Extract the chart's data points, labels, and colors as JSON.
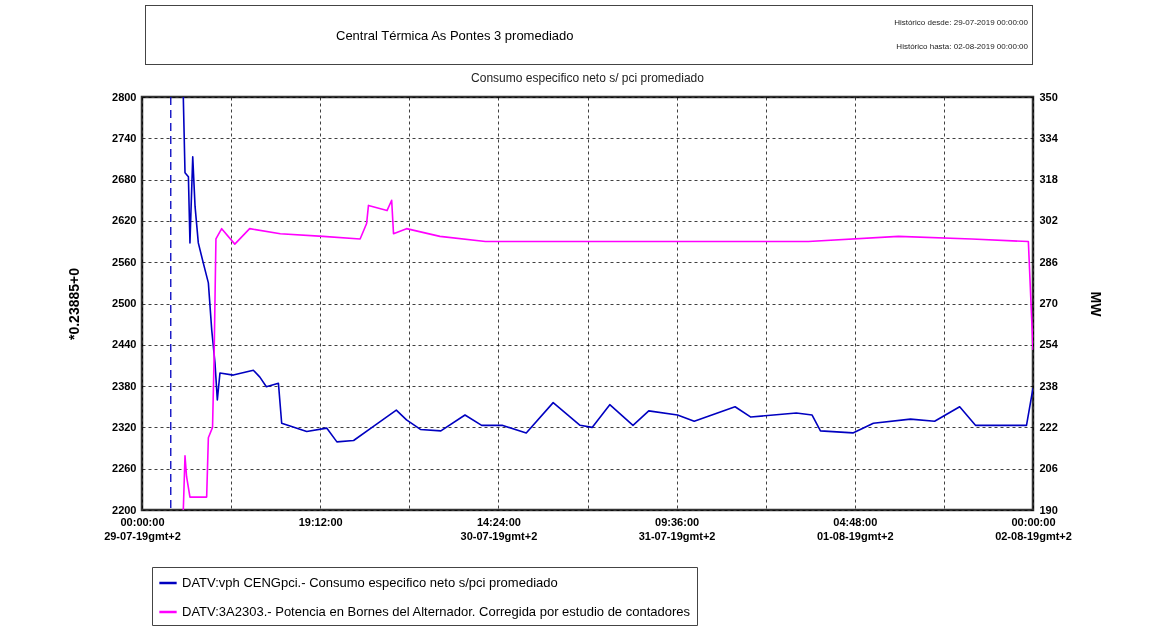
{
  "chart_data": {
    "type": "line",
    "title": "Central Térmica As Pontes 3 promediado",
    "subtitle": "Consumo especifico neto s/ pci promediado",
    "annotations": [
      "Histórico desde: 29-07-2019 00:00:00",
      "Histórico hasta: 02-08-2019 00:00:00"
    ],
    "ylabel": "*0.23885+0",
    "y2label": "MW",
    "xlim": [
      "2019-07-29T00:00",
      "2019-08-02T00:00"
    ],
    "xticks": [
      {
        "value": "2019-07-29T00:00",
        "label": "00:00:00\n29-07-19gmt+2"
      },
      {
        "value": "2019-07-29T09:36",
        "label": null
      },
      {
        "value": "2019-07-29T19:12",
        "label": "19:12:00"
      },
      {
        "value": "2019-07-30T04:48",
        "label": null
      },
      {
        "value": "2019-07-30T14:24",
        "label": "14:24:00\n30-07-19gmt+2"
      },
      {
        "value": "2019-07-31T00:00",
        "label": null
      },
      {
        "value": "2019-07-31T09:36",
        "label": "09:36:00\n31-07-19gmt+2"
      },
      {
        "value": "2019-07-31T19:12",
        "label": null
      },
      {
        "value": "2019-08-01T04:48",
        "label": "04:48:00\n01-08-19gmt+2"
      },
      {
        "value": "2019-08-01T14:24",
        "label": null
      },
      {
        "value": "2019-08-02T00:00",
        "label": "00:00:00\n02-08-19gmt+2"
      }
    ],
    "ylim": [
      2200,
      2800
    ],
    "yticks": [
      2200,
      2260,
      2320,
      2380,
      2440,
      2500,
      2560,
      2620,
      2680,
      2740,
      2800
    ],
    "y2lim": [
      190,
      350
    ],
    "y2ticks": [
      190,
      206,
      222,
      238,
      254,
      270,
      286,
      302,
      318,
      334,
      350
    ],
    "grid": true,
    "legend": "bottom",
    "ref_lines": [
      {
        "axis": "x",
        "value": "2019-07-29T03:06",
        "color": "#0000c0",
        "line_style": "dashed"
      }
    ],
    "series": [
      {
        "name": "DATV:vph  CENGpci.- Consumo especifico neto s/pci promediado",
        "color": "#0000c0",
        "x": [
          "2019-07-29T04:27",
          "2019-07-29T04:38",
          "2019-07-29T05:00",
          "2019-07-29T05:10",
          "2019-07-29T05:28",
          "2019-07-29T05:43",
          "2019-07-29T06:04",
          "2019-07-29T06:36",
          "2019-07-29T07:09",
          "2019-07-29T07:31",
          "2019-07-29T07:52",
          "2019-07-29T08:07",
          "2019-07-29T08:24",
          "2019-07-29T09:50",
          "2019-07-29T12:00",
          "2019-07-29T12:42",
          "2019-07-29T13:24",
          "2019-07-29T14:42",
          "2019-07-29T15:03",
          "2019-07-29T17:45",
          "2019-07-29T19:54",
          "2019-07-29T21:00",
          "2019-07-29T22:48",
          "2019-07-30T00:54",
          "2019-07-30T03:24",
          "2019-07-30T04:30",
          "2019-07-30T06:00",
          "2019-07-30T08:12",
          "2019-07-30T10:48",
          "2019-07-30T12:36",
          "2019-07-30T14:48",
          "2019-07-30T17:24",
          "2019-07-30T20:18",
          "2019-07-30T23:12",
          "2019-07-31T00:30",
          "2019-07-31T02:24",
          "2019-07-31T04:54",
          "2019-07-31T06:36",
          "2019-07-31T09:42",
          "2019-07-31T11:30",
          "2019-07-31T15:54",
          "2019-07-31T17:36",
          "2019-07-31T22:30",
          "2019-08-01T00:12",
          "2019-08-01T01:06",
          "2019-08-01T04:36",
          "2019-08-01T06:48",
          "2019-08-01T10:48",
          "2019-08-01T13:24",
          "2019-08-01T16:06",
          "2019-08-01T17:48",
          "2019-08-01T20:54",
          "2019-08-01T23:18",
          "2019-08-02T00:00"
        ],
        "values": [
          2800,
          2690,
          2684,
          2588,
          2713,
          2641,
          2588,
          2559,
          2530,
          2461,
          2413,
          2360,
          2399,
          2396,
          2403,
          2393,
          2379,
          2384,
          2326,
          2314,
          2319,
          2299,
          2301,
          2321,
          2345,
          2331,
          2317,
          2315,
          2338,
          2323,
          2323,
          2312,
          2356,
          2323,
          2320,
          2353,
          2323,
          2344,
          2338,
          2329,
          2350,
          2335,
          2341,
          2338,
          2315,
          2312,
          2326,
          2332,
          2329,
          2350,
          2323,
          2323,
          2323,
          2377
        ]
      },
      {
        "name": "DATV:3A2303.- Potencia en Bornes del Alternador. Corregida por estudio de contadores",
        "color": "#ff00ff",
        "axis": "y2",
        "x": [
          "2019-07-29T04:27",
          "2019-07-29T04:38",
          "2019-07-29T04:48",
          "2019-07-29T05:10",
          "2019-07-29T06:58",
          "2019-07-29T07:09",
          "2019-07-29T07:36",
          "2019-07-29T07:46",
          "2019-07-29T07:58",
          "2019-07-29T08:35",
          "2019-07-29T10:00",
          "2019-07-29T11:36",
          "2019-07-29T14:54",
          "2019-07-29T19:30",
          "2019-07-29T23:30",
          "2019-07-30T00:12",
          "2019-07-30T00:24",
          "2019-07-30T02:24",
          "2019-07-30T02:54",
          "2019-07-30T03:06",
          "2019-07-30T04:30",
          "2019-07-30T08:06",
          "2019-07-30T13:00",
          "2019-07-30T21:24",
          "2019-07-31T06:12",
          "2019-07-31T15:00",
          "2019-07-31T23:48",
          "2019-08-01T09:30",
          "2019-08-01T17:24",
          "2019-08-01T23:30",
          "2019-08-02T00:00"
        ],
        "values": [
          190,
          211,
          203,
          195,
          195,
          218,
          222,
          249,
          295,
          299,
          293,
          299,
          297,
          296,
          295,
          301,
          308,
          306,
          310,
          297,
          299,
          296,
          294,
          294,
          294,
          294,
          294,
          296,
          295,
          294,
          252
        ]
      }
    ]
  }
}
